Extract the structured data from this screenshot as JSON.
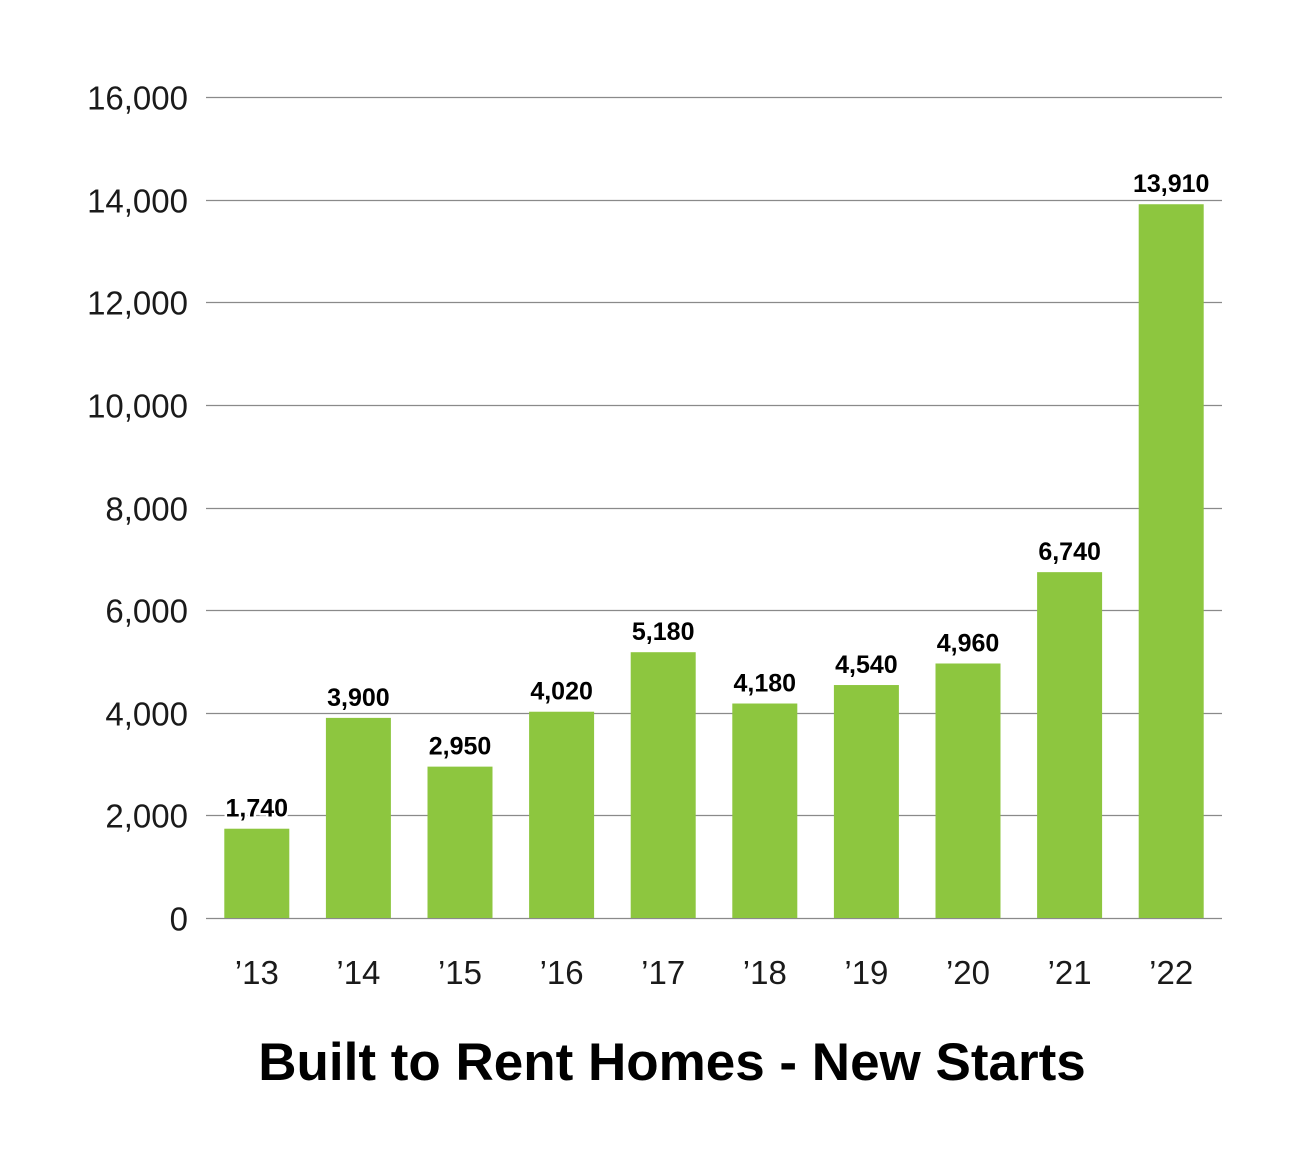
{
  "chart_data": {
    "type": "bar",
    "title": "Built to Rent Homes - New Starts",
    "xlabel": "",
    "ylabel": "",
    "categories": [
      "’13",
      "’14",
      "’15",
      "’16",
      "’17",
      "’18",
      "’19",
      "’20",
      "’21",
      "’22"
    ],
    "values": [
      1740,
      3900,
      2950,
      4020,
      5180,
      4180,
      4540,
      4960,
      6740,
      13910
    ],
    "data_labels": [
      "1,740",
      "3,900",
      "2,950",
      "4,020",
      "5,180",
      "4,180",
      "4,540",
      "4,960",
      "6,740",
      "13,910"
    ],
    "ylim": [
      0,
      16000
    ],
    "yticks": [
      0,
      2000,
      4000,
      6000,
      8000,
      10000,
      12000,
      14000,
      16000
    ],
    "ytick_labels": [
      "0",
      "2,000",
      "4,000",
      "6,000",
      "8,000",
      "10,000",
      "12,000",
      "14,000",
      "16,000"
    ],
    "grid": true,
    "legend": "none",
    "colors": {
      "bar": "#8dc63f",
      "grid": "#8a8a8a"
    }
  }
}
